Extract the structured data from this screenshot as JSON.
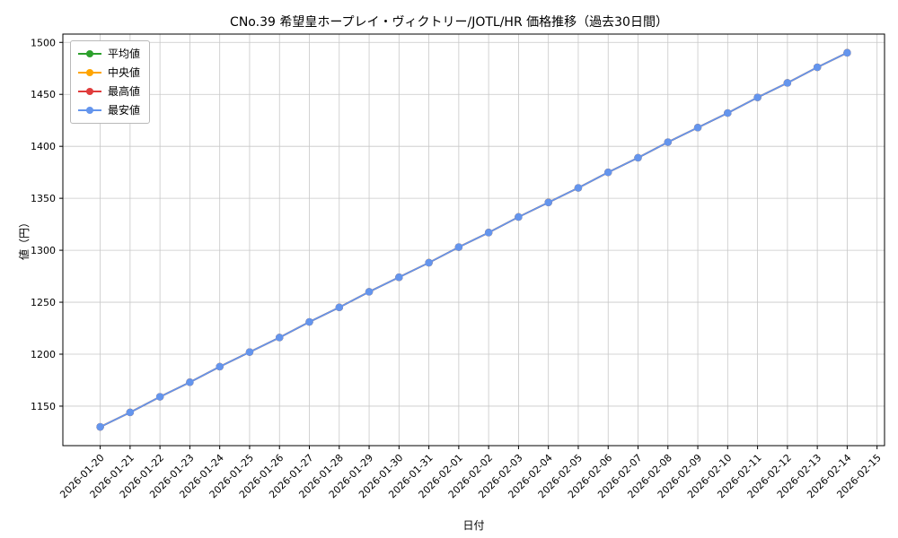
{
  "chart_data": {
    "type": "line",
    "title": "CNo.39 希望皇ホープレイ・ヴィクトリー/JOTL/HR 価格推移（過去30日間）",
    "xlabel": "日付",
    "ylabel": "値（円）",
    "x": [
      "2026-01-20",
      "2026-01-21",
      "2026-01-22",
      "2026-01-23",
      "2026-01-24",
      "2026-01-25",
      "2026-01-26",
      "2026-01-27",
      "2026-01-28",
      "2026-01-29",
      "2026-01-30",
      "2026-01-31",
      "2026-02-01",
      "2026-02-02",
      "2026-02-03",
      "2026-02-04",
      "2026-02-05",
      "2026-02-06",
      "2026-02-07",
      "2026-02-08",
      "2026-02-09",
      "2026-02-10",
      "2026-02-11",
      "2026-02-12",
      "2026-02-13",
      "2026-02-14"
    ],
    "x_ticks": [
      "2026-01-20",
      "2026-01-21",
      "2026-01-22",
      "2026-01-23",
      "2026-01-24",
      "2026-01-25",
      "2026-01-26",
      "2026-01-27",
      "2026-01-28",
      "2026-01-29",
      "2026-01-30",
      "2026-01-31",
      "2026-02-01",
      "2026-02-02",
      "2026-02-03",
      "2026-02-04",
      "2026-02-05",
      "2026-02-06",
      "2026-02-07",
      "2026-02-08",
      "2026-02-09",
      "2026-02-10",
      "2026-02-11",
      "2026-02-12",
      "2026-02-13",
      "2026-02-14",
      "2026-02-15"
    ],
    "series": [
      {
        "name": "平均値",
        "color": "#2ca02c",
        "values": [
          1130,
          1144,
          1159,
          1173,
          1188,
          1202,
          1216,
          1231,
          1245,
          1260,
          1274,
          1288,
          1303,
          1317,
          1332,
          1346,
          1360,
          1375,
          1389,
          1404,
          1418,
          1432,
          1447,
          1461,
          1476,
          1490
        ]
      },
      {
        "name": "中央値",
        "color": "#ffa500",
        "values": [
          1130,
          1144,
          1159,
          1173,
          1188,
          1202,
          1216,
          1231,
          1245,
          1260,
          1274,
          1288,
          1303,
          1317,
          1332,
          1346,
          1360,
          1375,
          1389,
          1404,
          1418,
          1432,
          1447,
          1461,
          1476,
          1490
        ]
      },
      {
        "name": "最高値",
        "color": "#e03c3c",
        "values": [
          1130,
          1144,
          1159,
          1173,
          1188,
          1202,
          1216,
          1231,
          1245,
          1260,
          1274,
          1288,
          1303,
          1317,
          1332,
          1346,
          1360,
          1375,
          1389,
          1404,
          1418,
          1432,
          1447,
          1461,
          1476,
          1490
        ]
      },
      {
        "name": "最安値",
        "color": "#6495ed",
        "values": [
          1130,
          1144,
          1159,
          1173,
          1188,
          1202,
          1216,
          1231,
          1245,
          1260,
          1274,
          1288,
          1303,
          1317,
          1332,
          1346,
          1360,
          1375,
          1389,
          1404,
          1418,
          1432,
          1447,
          1461,
          1476,
          1490
        ]
      }
    ],
    "ylim": [
      1112,
      1508
    ],
    "y_ticks": [
      1150,
      1200,
      1250,
      1300,
      1350,
      1400,
      1450,
      1500
    ],
    "grid": true,
    "legend_position": "upper left",
    "grid_color": "#c8c8c8",
    "spine_color": "#000000"
  }
}
